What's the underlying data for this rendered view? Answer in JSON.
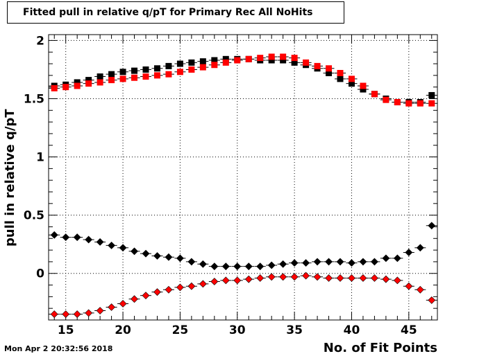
{
  "title": "Fitted pull in relative q/pT for Primary Rec All NoHits",
  "timestamp": "Mon Apr  2 20:32:56 2018",
  "chart_data": {
    "type": "scatter",
    "title": "Fitted pull in relative q/pT for Primary Rec All NoHits",
    "xlabel": "No. of Fit Points",
    "ylabel": "pull in relative q/pT",
    "xlim": [
      13.5,
      47.5
    ],
    "ylim": [
      -0.4,
      2.05
    ],
    "x_ticks": [
      15,
      20,
      25,
      30,
      35,
      40,
      45
    ],
    "y_ticks": [
      0,
      0.5,
      1,
      1.5,
      2
    ],
    "y_tick_labels": [
      "0",
      "0.5",
      "1",
      "1.5",
      "2"
    ],
    "grid": true,
    "x": [
      14,
      15,
      16,
      17,
      18,
      19,
      20,
      21,
      22,
      23,
      24,
      25,
      26,
      27,
      28,
      29,
      30,
      31,
      32,
      33,
      34,
      35,
      36,
      37,
      38,
      39,
      40,
      41,
      42,
      43,
      44,
      45,
      46,
      47
    ],
    "series": [
      {
        "color": "#000000",
        "marker": "square",
        "values": [
          1.61,
          1.62,
          1.64,
          1.66,
          1.69,
          1.71,
          1.73,
          1.74,
          1.75,
          1.76,
          1.78,
          1.8,
          1.81,
          1.82,
          1.83,
          1.84,
          1.84,
          1.84,
          1.83,
          1.83,
          1.83,
          1.81,
          1.79,
          1.76,
          1.72,
          1.67,
          1.63,
          1.58,
          1.54,
          1.5,
          1.47,
          1.47,
          1.47,
          1.53
        ]
      },
      {
        "color": "#ff0000",
        "marker": "square",
        "values": [
          1.59,
          1.6,
          1.61,
          1.63,
          1.64,
          1.66,
          1.67,
          1.68,
          1.69,
          1.7,
          1.71,
          1.73,
          1.75,
          1.77,
          1.79,
          1.81,
          1.83,
          1.84,
          1.85,
          1.86,
          1.86,
          1.85,
          1.81,
          1.78,
          1.76,
          1.72,
          1.67,
          1.61,
          1.54,
          1.49,
          1.47,
          1.46,
          1.46,
          1.46
        ]
      },
      {
        "color": "#000000",
        "marker": "diamond",
        "values": [
          0.33,
          0.31,
          0.31,
          0.29,
          0.27,
          0.24,
          0.22,
          0.19,
          0.17,
          0.15,
          0.14,
          0.13,
          0.1,
          0.08,
          0.06,
          0.06,
          0.06,
          0.06,
          0.06,
          0.07,
          0.08,
          0.09,
          0.09,
          0.1,
          0.1,
          0.1,
          0.09,
          0.1,
          0.1,
          0.13,
          0.13,
          0.18,
          0.22,
          0.41
        ]
      },
      {
        "color": "#ff0000",
        "marker": "diamond",
        "values": [
          -0.35,
          -0.35,
          -0.35,
          -0.34,
          -0.32,
          -0.29,
          -0.26,
          -0.22,
          -0.19,
          -0.16,
          -0.14,
          -0.12,
          -0.11,
          -0.09,
          -0.07,
          -0.06,
          -0.06,
          -0.05,
          -0.04,
          -0.03,
          -0.03,
          -0.03,
          -0.02,
          -0.03,
          -0.04,
          -0.04,
          -0.04,
          -0.04,
          -0.04,
          -0.05,
          -0.06,
          -0.11,
          -0.14,
          -0.23
        ]
      }
    ]
  }
}
